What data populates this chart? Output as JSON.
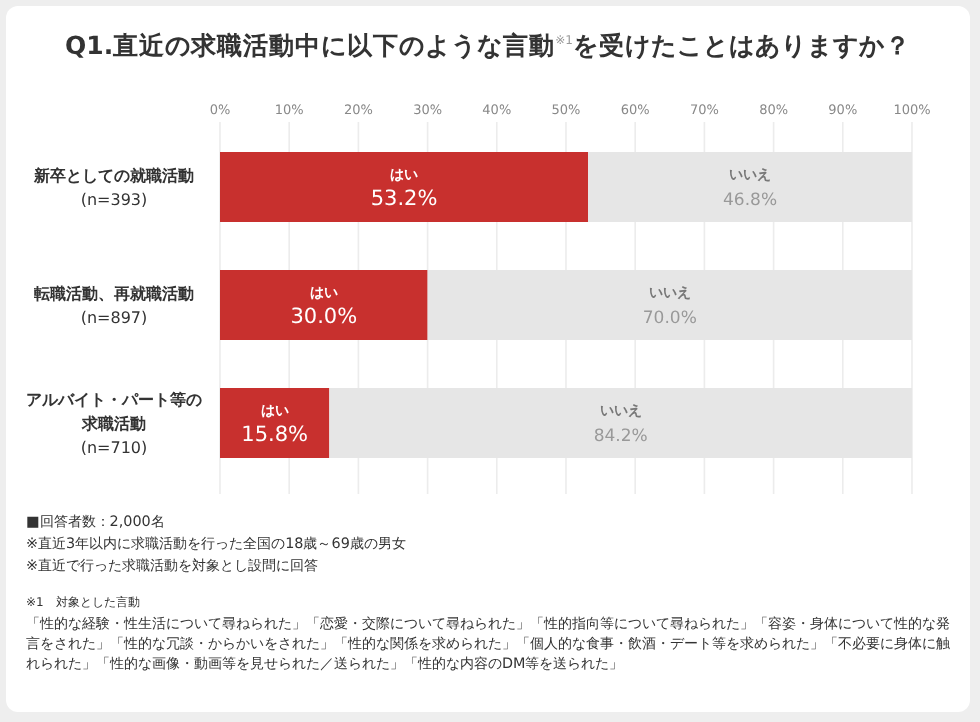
{
  "chart_data": {
    "type": "bar",
    "orientation": "horizontal",
    "stacked": true,
    "title": "Q1.直近の求職活動中に以下のような言動$^{※1}$を受けたことはありますか？",
    "categories": [
      "新卒としての就職活動 (n=393)",
      "転職活動、再就職活動 (n=897)",
      "アルバイト・パート等の求職活動 (n=710)"
    ],
    "series": [
      {
        "name": "はい",
        "color": "#c8302e",
        "values": [
          53.2,
          30.0,
          15.8
        ]
      },
      {
        "name": "いいえ",
        "color": "#e6e6e6",
        "values": [
          46.8,
          70.0,
          84.2
        ]
      }
    ],
    "value_labels": [
      [
        "53.2%",
        "30.0%",
        "15.8%"
      ],
      [
        "46.8%",
        "70.0%",
        "84.2%"
      ]
    ],
    "xlim": [
      0,
      100
    ],
    "xticks": [
      {
        "value": 0,
        "label": "0%"
      },
      {
        "value": 10,
        "label": "10%"
      },
      {
        "value": 20,
        "label": "20%"
      },
      {
        "value": 30,
        "label": "30%"
      },
      {
        "value": 40,
        "label": "40%"
      },
      {
        "value": 50,
        "label": "50%"
      },
      {
        "value": 60,
        "label": "60%"
      },
      {
        "value": 70,
        "label": "70%"
      },
      {
        "value": 80,
        "label": "80%"
      },
      {
        "value": 90,
        "label": "90%"
      },
      {
        "value": 100,
        "label": "100%"
      }
    ],
    "grid": "x",
    "legend": false,
    "annotations": [
      "■回答者数：2,000名",
      "※直近3年以内に求職活動を行った全国の18歳～69歳の男女",
      "※直近で行った求職活動を対象とし設問に回答",
      "※1　対象とした言動",
      "「性的な経験・性生活について尋ねられた」「恋愛・交際について尋ねられた」「性的指向等について尋ねられた」「容姿・身体について性的な発言をされた」「性的な冗談・からかいをされた」「性的な関係を求められた」「個人的な食事・飲酒・デート等を求められた」「不必要に身体に触れられた」「性的な画像・動画等を見せられた／送られた」「性的な内容のDM等を送られた」"
    ]
  }
}
